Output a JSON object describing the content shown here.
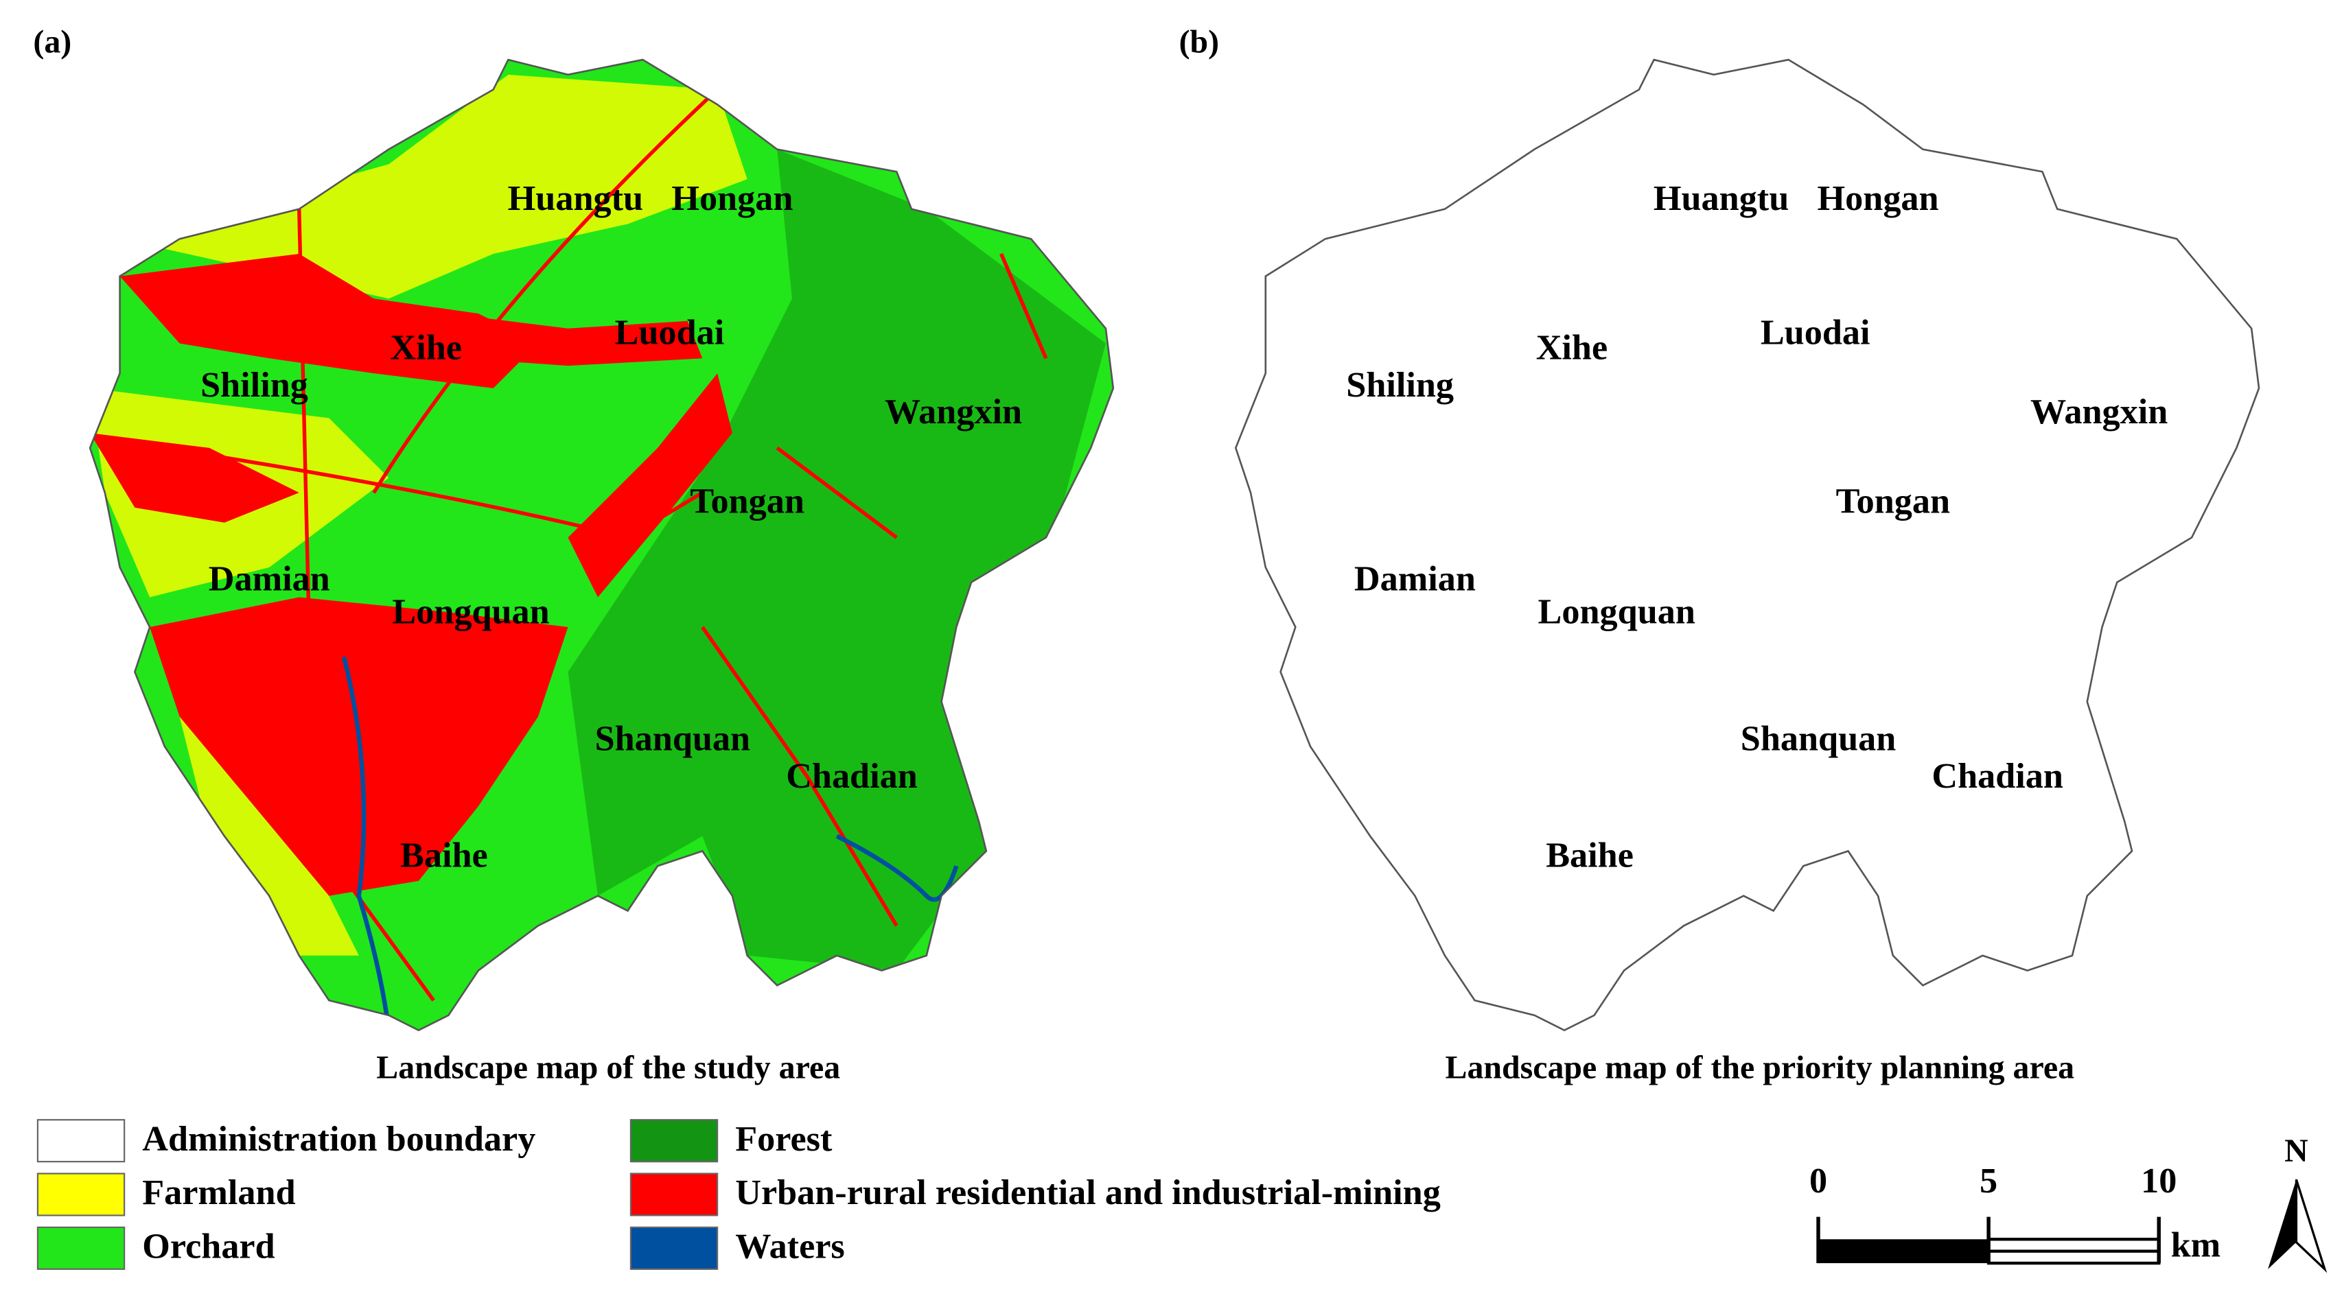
{
  "panels": [
    {
      "label": "(a)",
      "caption": "Landscape map of the study area",
      "places": [
        "Huangtu",
        "Hongan",
        "Xihe",
        "Luodai",
        "Shiling",
        "Wangxin",
        "Tongan",
        "Damian",
        "Longquan",
        "Shanquan",
        "Chadian",
        "Baihe"
      ]
    },
    {
      "label": "(b)",
      "caption": "Landscape map of the priority planning area",
      "places": [
        "Huangtu",
        "Hongan",
        "Xihe",
        "Luodai",
        "Shiling",
        "Wangxin",
        "Tongan",
        "Damian",
        "Longquan",
        "Shanquan",
        "Chadian",
        "Baihe"
      ]
    }
  ],
  "legend": [
    {
      "label": "Administration boundary",
      "color": "#ffffff"
    },
    {
      "label": "Farmland",
      "color": "#ffff00"
    },
    {
      "label": "Orchard",
      "color": "#22e61a"
    },
    {
      "label": "Forest",
      "color": "#139413"
    },
    {
      "label": "Urban-rural residential and industrial-mining",
      "color": "#ff0000"
    },
    {
      "label": "Waters",
      "color": "#0050a0"
    }
  ],
  "scale_bar": {
    "ticks": [
      0,
      5,
      10
    ],
    "unit": "km"
  },
  "north": "N"
}
